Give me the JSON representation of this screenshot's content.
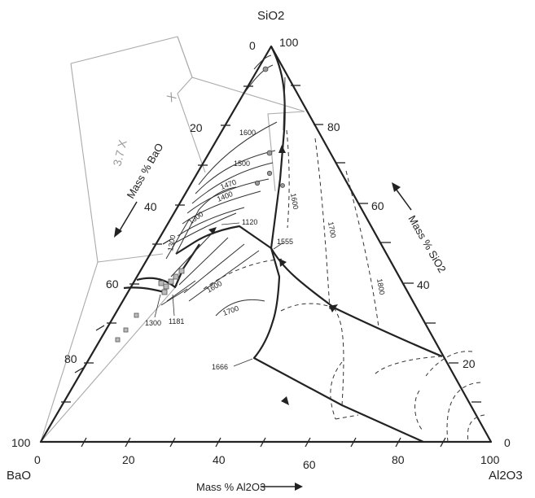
{
  "corners": {
    "top": "SiO2",
    "left": "BaO",
    "right": "Al2O3"
  },
  "axes": {
    "bottom": {
      "title": "Mass % Al2O3",
      "ticks": [
        "0",
        "20",
        "40",
        "60",
        "80",
        "100"
      ]
    },
    "right": {
      "title": "Mass % SiO2",
      "ticks": [
        "100",
        "80",
        "60",
        "40",
        "20",
        "0"
      ]
    },
    "left": {
      "title": "Mass % BaO",
      "ticks": [
        "0",
        "20",
        "40",
        "60",
        "80",
        "100"
      ]
    }
  },
  "inset_labels": {
    "magnification_outer": "3.7 X",
    "magnification_inner": "X"
  },
  "isotherms": [
    "1600",
    "1500",
    "1470",
    "1400",
    "1300",
    "1120",
    "1300",
    "1555",
    "1600",
    "1700",
    "1600",
    "1700",
    "1800",
    "1300",
    "1181",
    "1666"
  ],
  "colors": {
    "lines": "#222222",
    "inset": "#aaaaaa",
    "points": "#999999"
  }
}
